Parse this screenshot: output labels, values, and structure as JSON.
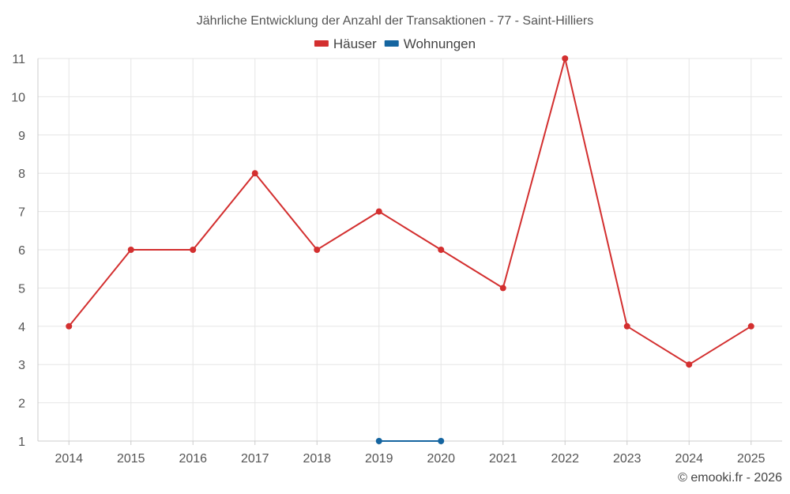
{
  "chart_data": {
    "type": "line",
    "title": "Jährliche Entwicklung der Anzahl der Transaktionen - 77 - Saint-Hilliers",
    "x": [
      "2014",
      "2015",
      "2016",
      "2017",
      "2018",
      "2019",
      "2020",
      "2021",
      "2022",
      "2023",
      "2024",
      "2025"
    ],
    "y_ticks": [
      "1",
      "2",
      "3",
      "4",
      "5",
      "6",
      "7",
      "8",
      "9",
      "10",
      "11"
    ],
    "ylim": [
      1,
      11
    ],
    "series": [
      {
        "name": "Häuser",
        "color": "#d32f2f",
        "values": [
          4,
          6,
          6,
          8,
          6,
          7,
          6,
          5,
          11,
          4,
          3,
          4
        ]
      },
      {
        "name": "Wohnungen",
        "color": "#1565a0",
        "values": [
          null,
          null,
          null,
          null,
          null,
          1,
          1,
          null,
          null,
          null,
          null,
          null
        ]
      }
    ],
    "legend_position": "top-center",
    "grid": true
  },
  "credit": "© emooki.fr - 2026"
}
